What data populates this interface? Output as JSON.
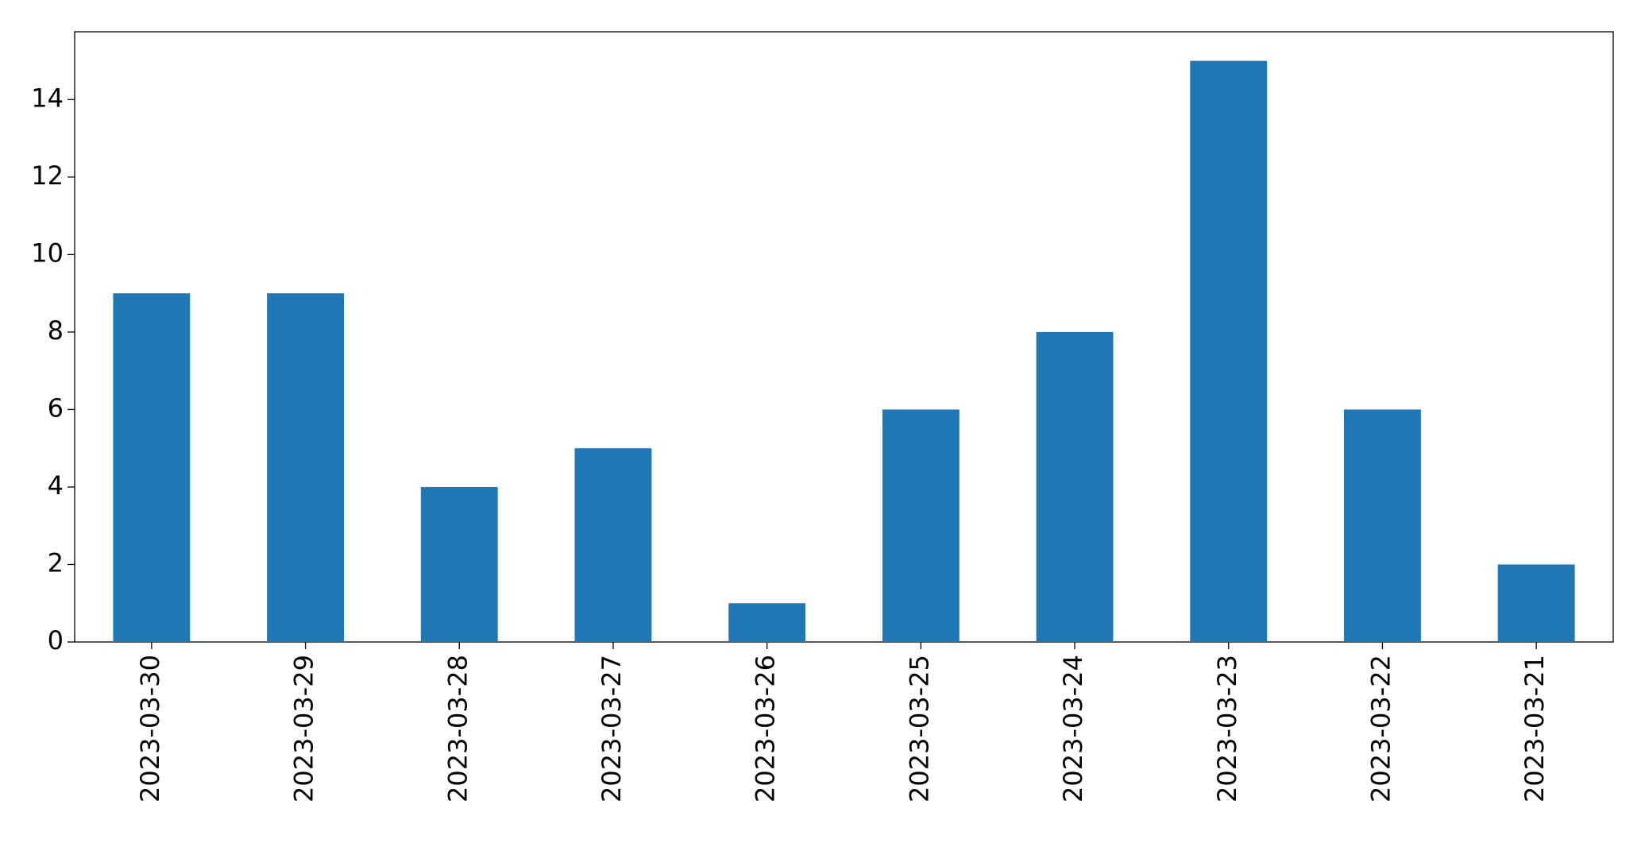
{
  "chart_data": {
    "type": "bar",
    "categories": [
      "2023-03-30",
      "2023-03-29",
      "2023-03-28",
      "2023-03-27",
      "2023-03-26",
      "2023-03-25",
      "2023-03-24",
      "2023-03-23",
      "2023-03-22",
      "2023-03-21"
    ],
    "values": [
      9,
      9,
      4,
      5,
      1,
      6,
      8,
      15,
      6,
      2
    ],
    "color": "#1f77b4",
    "ylim": [
      0,
      15.75
    ],
    "yticks": [
      0,
      2,
      4,
      6,
      8,
      10,
      12,
      14
    ],
    "grid": false
  }
}
